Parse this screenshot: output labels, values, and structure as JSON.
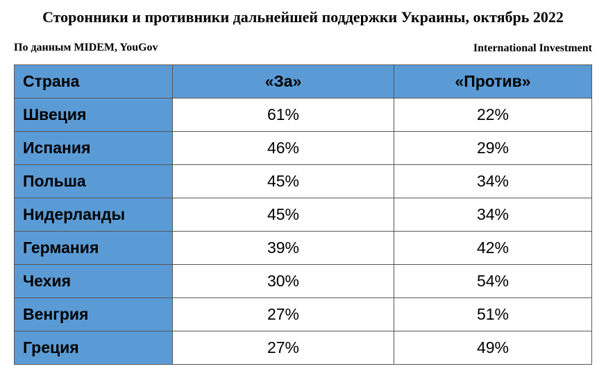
{
  "title": "Сторонники и противники дальнейшей поддержки Украины, октябрь 2022",
  "source": "По данным MIDEM, YouGov",
  "publisher": "International Investment",
  "colors": {
    "header_bg": "#5b9bd5",
    "cell_bg": "#ffffff",
    "border": "#555555"
  },
  "chart_data": {
    "type": "table",
    "title": "Сторонники и противники дальнейшей поддержки Украины, октябрь 2022",
    "columns": [
      "Страна",
      "«За»",
      "«Против»"
    ],
    "rows": [
      {
        "country": "Швеция",
        "za": "61%",
        "protiv": "22%"
      },
      {
        "country": "Испания",
        "za": "46%",
        "protiv": "29%"
      },
      {
        "country": "Польша",
        "za": "45%",
        "protiv": "34%"
      },
      {
        "country": "Нидерланды",
        "za": "45%",
        "protiv": "34%"
      },
      {
        "country": "Германия",
        "za": "39%",
        "protiv": "42%"
      },
      {
        "country": "Чехия",
        "za": "30%",
        "protiv": "54%"
      },
      {
        "country": "Венгрия",
        "za": "27%",
        "protiv": "51%"
      },
      {
        "country": "Греция",
        "za": "27%",
        "protiv": "49%"
      }
    ]
  }
}
